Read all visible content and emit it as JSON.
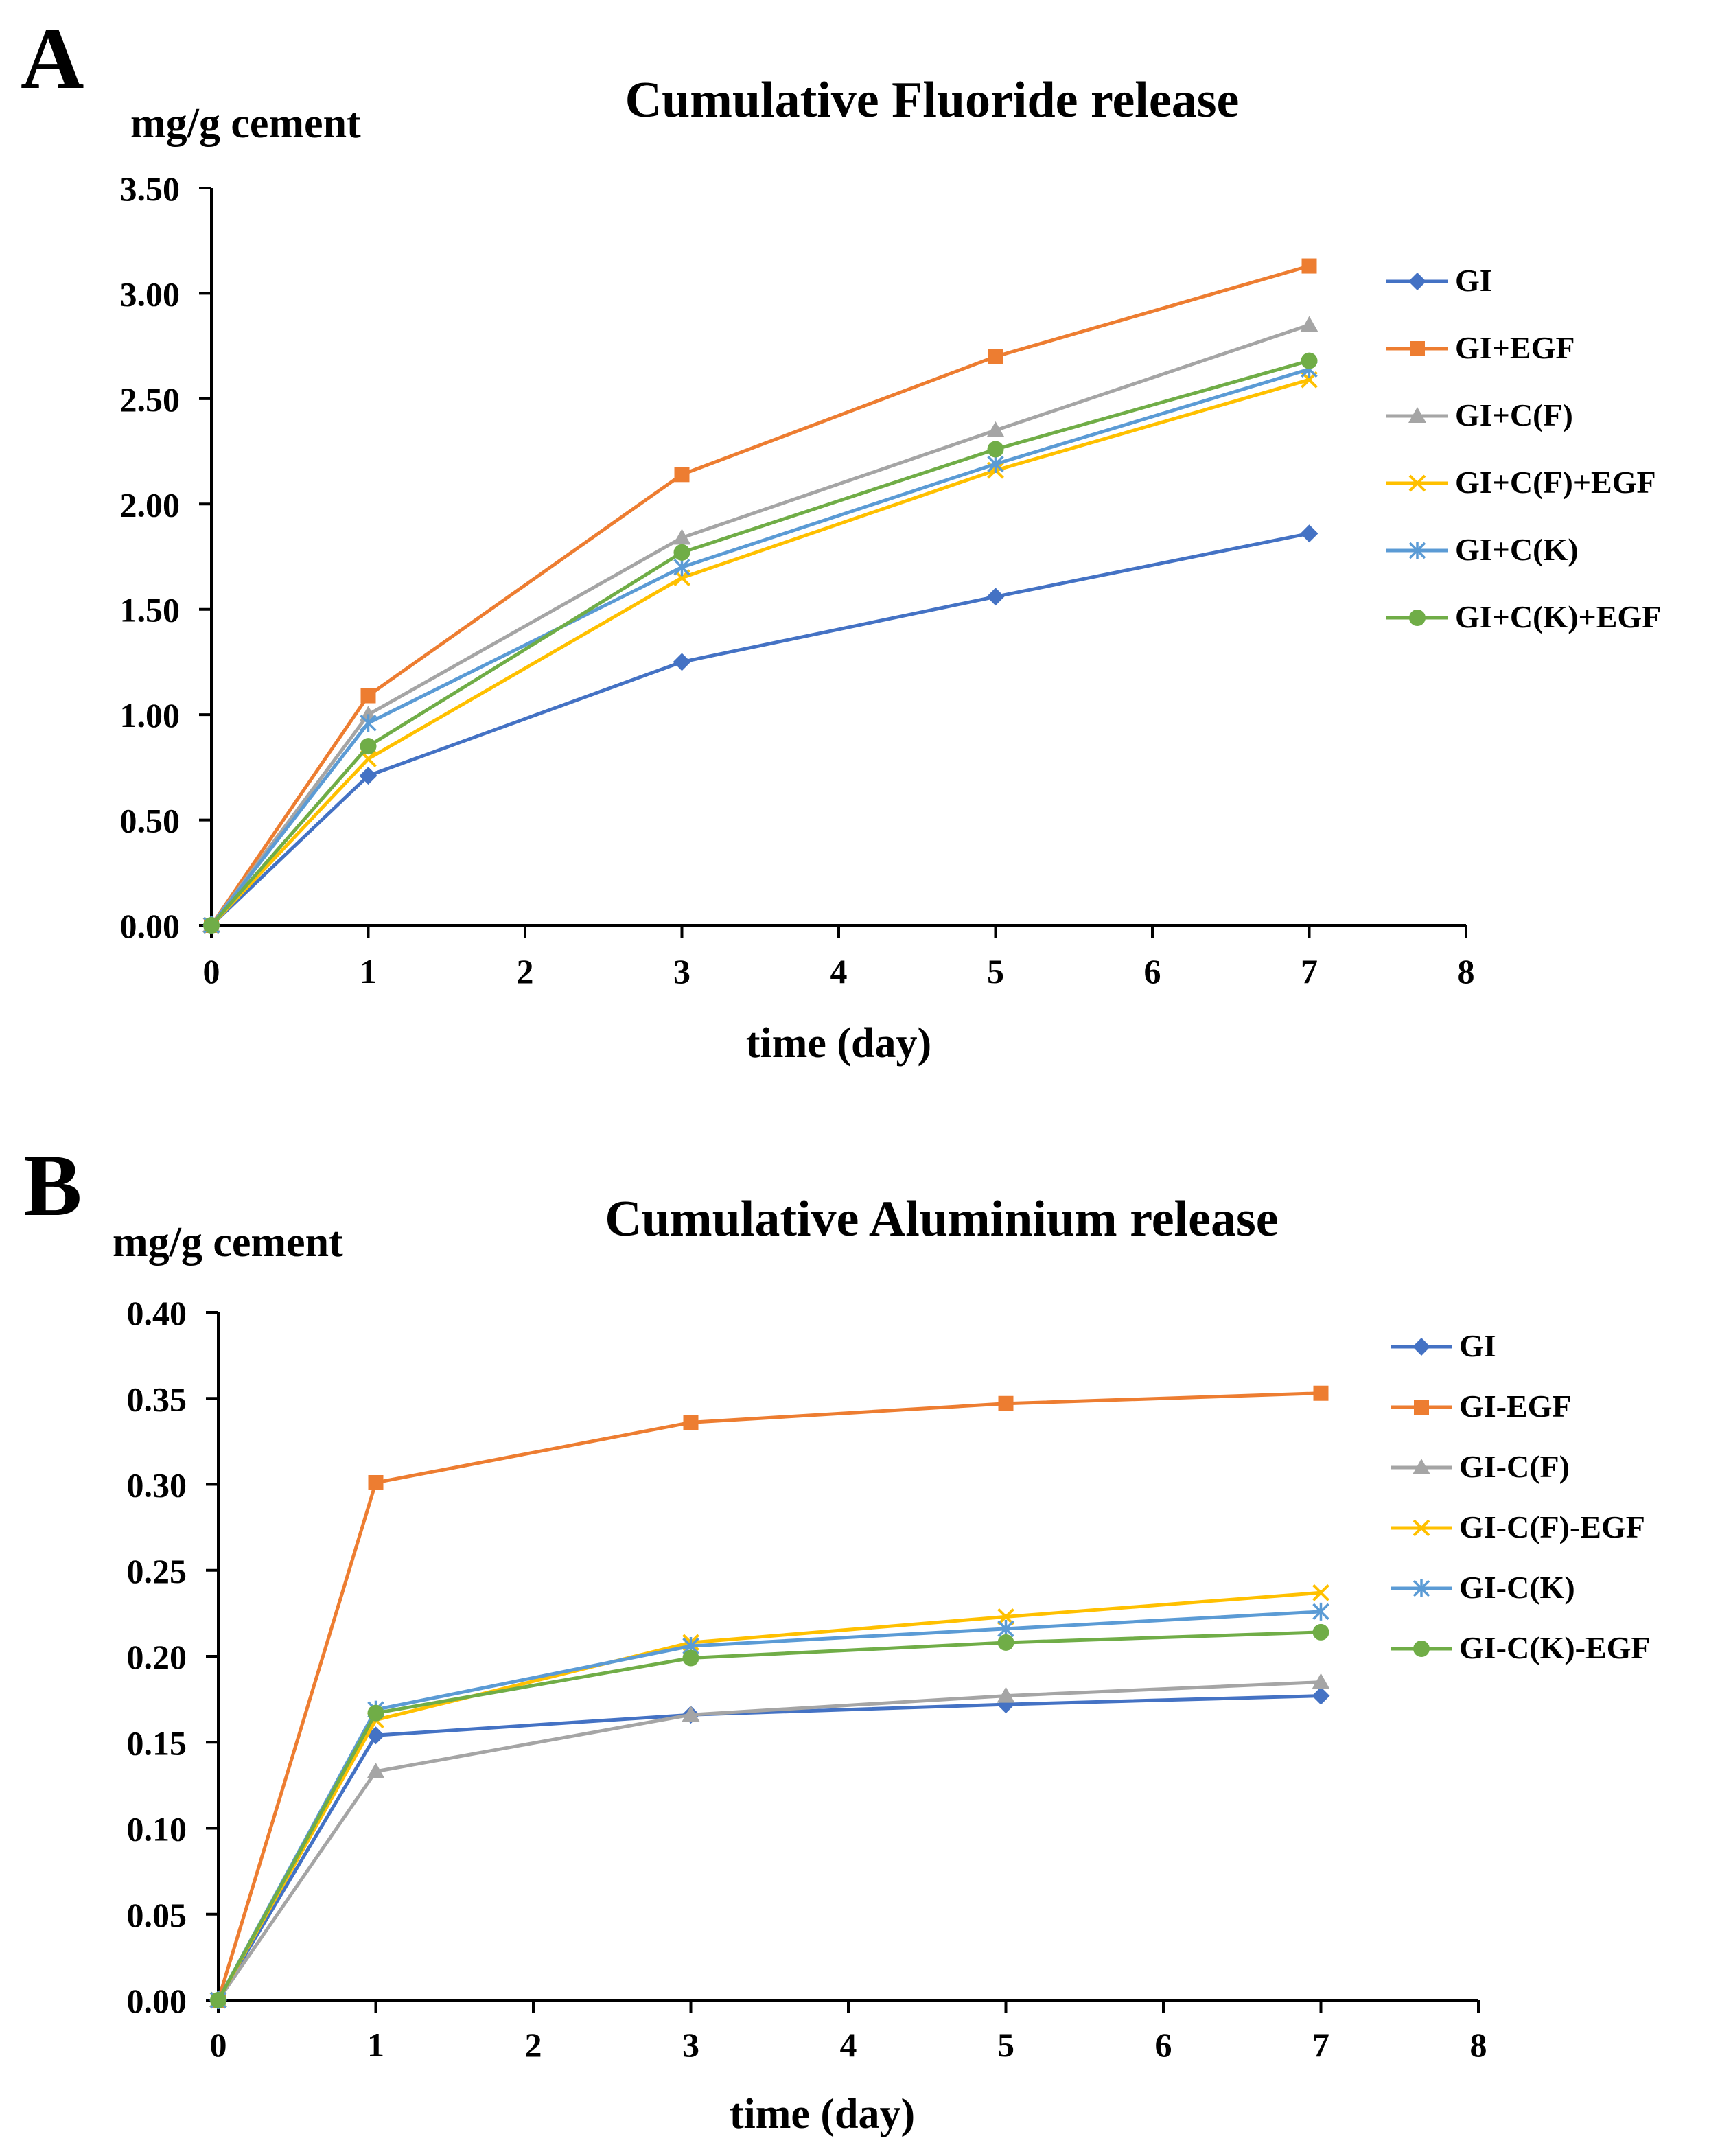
{
  "chart_data": [
    {
      "panel": "A",
      "type": "line",
      "title": "Cumulative Fluoride release",
      "ylabel": "mg/g cement",
      "xlabel": "time (day)",
      "xlim": [
        0,
        8
      ],
      "ylim": [
        0,
        3.5
      ],
      "xticks": [
        "0",
        "1",
        "2",
        "3",
        "4",
        "5",
        "6",
        "7",
        "8"
      ],
      "yticks": [
        "0.00",
        "0.50",
        "1.00",
        "1.50",
        "2.00",
        "2.50",
        "3.00",
        "3.50"
      ],
      "x": [
        0,
        1,
        3,
        5,
        7
      ],
      "grid": false,
      "legend": "right",
      "series": [
        {
          "name": "GI",
          "color": "#4472C4",
          "marker": "diamond",
          "values": [
            0,
            0.71,
            1.25,
            1.56,
            1.86
          ]
        },
        {
          "name": "GI+EGF",
          "color": "#ED7D31",
          "marker": "square",
          "values": [
            0,
            1.09,
            2.14,
            2.7,
            3.13
          ]
        },
        {
          "name": "GI+C(F)",
          "color": "#A5A5A5",
          "marker": "triangle",
          "values": [
            0,
            1.0,
            1.84,
            2.35,
            2.85
          ]
        },
        {
          "name": "GI+C(F)+EGF",
          "color": "#FFC000",
          "marker": "x",
          "values": [
            0,
            0.79,
            1.65,
            2.16,
            2.59
          ]
        },
        {
          "name": "GI+C(K)",
          "color": "#5B9BD5",
          "marker": "star",
          "values": [
            0,
            0.96,
            1.7,
            2.19,
            2.64
          ]
        },
        {
          "name": "GI+C(K)+EGF",
          "color": "#70AD47",
          "marker": "circle",
          "values": [
            0,
            0.85,
            1.77,
            2.26,
            2.68
          ]
        }
      ]
    },
    {
      "panel": "B",
      "type": "line",
      "title": "Cumulative Aluminium release",
      "ylabel": "mg/g cement",
      "xlabel": "time (day)",
      "xlim": [
        0,
        8
      ],
      "ylim": [
        0,
        0.4
      ],
      "xticks": [
        "0",
        "1",
        "2",
        "3",
        "4",
        "5",
        "6",
        "7",
        "8"
      ],
      "yticks": [
        "0.00",
        "0.05",
        "0.10",
        "0.15",
        "0.20",
        "0.25",
        "0.30",
        "0.35",
        "0.40"
      ],
      "x": [
        0,
        1,
        3,
        5,
        7
      ],
      "grid": false,
      "legend": "right",
      "series": [
        {
          "name": "GI",
          "color": "#4472C4",
          "marker": "diamond",
          "values": [
            0,
            0.154,
            0.166,
            0.172,
            0.177
          ]
        },
        {
          "name": "GI-EGF",
          "color": "#ED7D31",
          "marker": "square",
          "values": [
            0,
            0.301,
            0.336,
            0.347,
            0.353
          ]
        },
        {
          "name": "GI-C(F)",
          "color": "#A5A5A5",
          "marker": "triangle",
          "values": [
            0,
            0.133,
            0.166,
            0.177,
            0.185
          ]
        },
        {
          "name": "GI-C(F)-EGF",
          "color": "#FFC000",
          "marker": "x",
          "values": [
            0,
            0.163,
            0.208,
            0.223,
            0.237
          ]
        },
        {
          "name": "GI-C(K)",
          "color": "#5B9BD5",
          "marker": "star",
          "values": [
            0,
            0.169,
            0.206,
            0.216,
            0.226
          ]
        },
        {
          "name": "GI-C(K)-EGF",
          "color": "#70AD47",
          "marker": "circle",
          "values": [
            0,
            0.167,
            0.199,
            0.208,
            0.214
          ]
        }
      ]
    }
  ]
}
